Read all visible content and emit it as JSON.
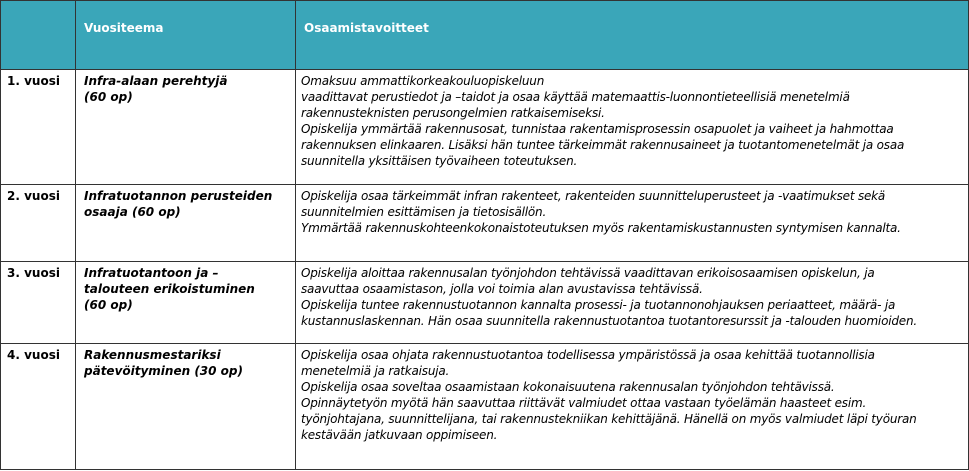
{
  "header": {
    "col1": "",
    "col2": "Vuositeema",
    "col3": "Osaamistavoitteet",
    "background": "#3aa6b9"
  },
  "rows": [
    {
      "year": "1. vuosi",
      "theme": [
        "Infra-alaan perehtyjä",
        "(60 op)"
      ],
      "goals": [
        "Omaksuu ammattikorkeakouluopiskeluun",
        "vaadittavat perustiedot ja –taidot ja osaa käyttää matemaattis-luonnontieteellisiä menetelmiä",
        "rakennusteknisten perusongelmien ratkaisemiseksi.",
        "Opiskelija ymmärtää rakennusosat, tunnistaa rakentamisprosessin osapuolet ja vaiheet ja hahmottaa",
        "rakennuksen elinkaaren. Lisäksi hän tuntee tärkeimmät rakennusaineet ja tuotantomenetelmät ja osaa",
        "suunnitella yksittäisen työvaiheen toteutuksen."
      ]
    },
    {
      "year": "2. vuosi",
      "theme": [
        "Infratuotannon perusteiden",
        "osaaja (60 op)"
      ],
      "goals": [
        "Opiskelija osaa tärkeimmät infran rakenteet, rakenteiden suunnitteluperusteet ja -vaatimukset sekä",
        "suunnitelmien esittämisen ja tietosisällön.",
        "Ymmärtää rakennuskohteenkokonaistoteutuksen myös rakentamiskustannusten syntymisen kannalta."
      ]
    },
    {
      "year": "3. vuosi",
      "theme": [
        "Infratuotantoon ja –",
        "talouteen erikoistuminen",
        "(60 op)"
      ],
      "goals": [
        "Opiskelija aloittaa rakennusalan työnjohdon tehtävissä vaadittavan erikoisosaamisen opiskelun, ja",
        "saavuttaa osaamistason, jolla voi toimia alan avustavissa tehtävissä.",
        "Opiskelija tuntee rakennustuotannon kannalta prosessi- ja tuotannonohjauksen periaatteet, määrä- ja",
        "kustannuslaskennan. Hän osaa suunnitella rakennustuotantoa tuotantoresurssit ja -talouden huomioiden."
      ]
    },
    {
      "year": "4. vuosi",
      "theme": [
        "Rakennusmestariksi",
        "pätevöityminen (30 op)"
      ],
      "goals": [
        "Opiskelija osaa ohjata rakennustuotantoa todellisessa ympäristössä ja osaa kehittää tuotannollisia",
        "menetelmiä ja ratkaisuja.",
        "Opiskelija osaa soveltaa osaamistaan kokonaisuutena rakennusalan työnjohdon tehtävissä.",
        "Opinnäytetyön myötä hän saavuttaa riittävät valmiudet ottaa vastaan työelämän haasteet esim.",
        "työnjohtajana, suunnittelijana, tai rakennustekniikan kehittäjänä. Hänellä on myös valmiudet läpi työuran",
        "kestävään jatkuvaan oppimiseen."
      ]
    }
  ]
}
